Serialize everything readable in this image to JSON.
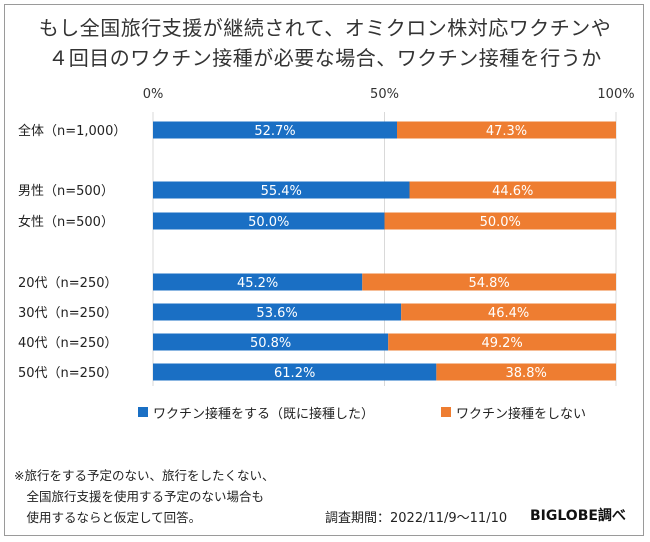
{
  "title_line1": "もし全国旅行支援が継続されて、オミクロン株対応ワクチンや",
  "title_line2": "４回目のワクチン接種が必要な場合、ワクチン接種を行うか",
  "colors": {
    "vaccinate": "#1a6fc4",
    "no_vaccinate": "#ee7d31"
  },
  "chart_data": {
    "type": "bar",
    "orientation": "horizontal",
    "stacked": true,
    "percent_stacked": true,
    "categories": [
      "全体（n=1,000）",
      "男性（n=500）",
      "女性（n=500）",
      "20代（n=250）",
      "30代（n=250）",
      "40代（n=250）",
      "50代（n=250）"
    ],
    "groups": [
      [
        0
      ],
      [
        1,
        2
      ],
      [
        3,
        4,
        5,
        6
      ]
    ],
    "x_ticks": [
      "0%",
      "50%",
      "100%"
    ],
    "xlim": [
      0,
      100
    ],
    "grid": true,
    "legend_position": "bottom",
    "series": [
      {
        "name": "ワクチン接種をする（既に接種した）",
        "values": [
          52.7,
          55.4,
          50.0,
          45.2,
          53.6,
          50.8,
          61.2
        ],
        "labels": [
          "52.7%",
          "55.4%",
          "50.0%",
          "45.2%",
          "53.6%",
          "50.8%",
          "61.2%"
        ]
      },
      {
        "name": "ワクチン接種をしない",
        "values": [
          47.3,
          44.6,
          50.0,
          54.8,
          46.4,
          49.2,
          38.8
        ],
        "labels": [
          "47.3%",
          "44.6%",
          "50.0%",
          "54.8%",
          "46.4%",
          "49.2%",
          "38.8%"
        ]
      }
    ]
  },
  "note_lines": [
    "※旅行をする予定のない、旅行をしたくない、",
    "　全国旅行支援を使用する予定のない場合も",
    "　使用するならと仮定して回答。"
  ],
  "survey_period": "調査期間：2022/11/9～11/10",
  "source": "BIGLOBE調べ"
}
